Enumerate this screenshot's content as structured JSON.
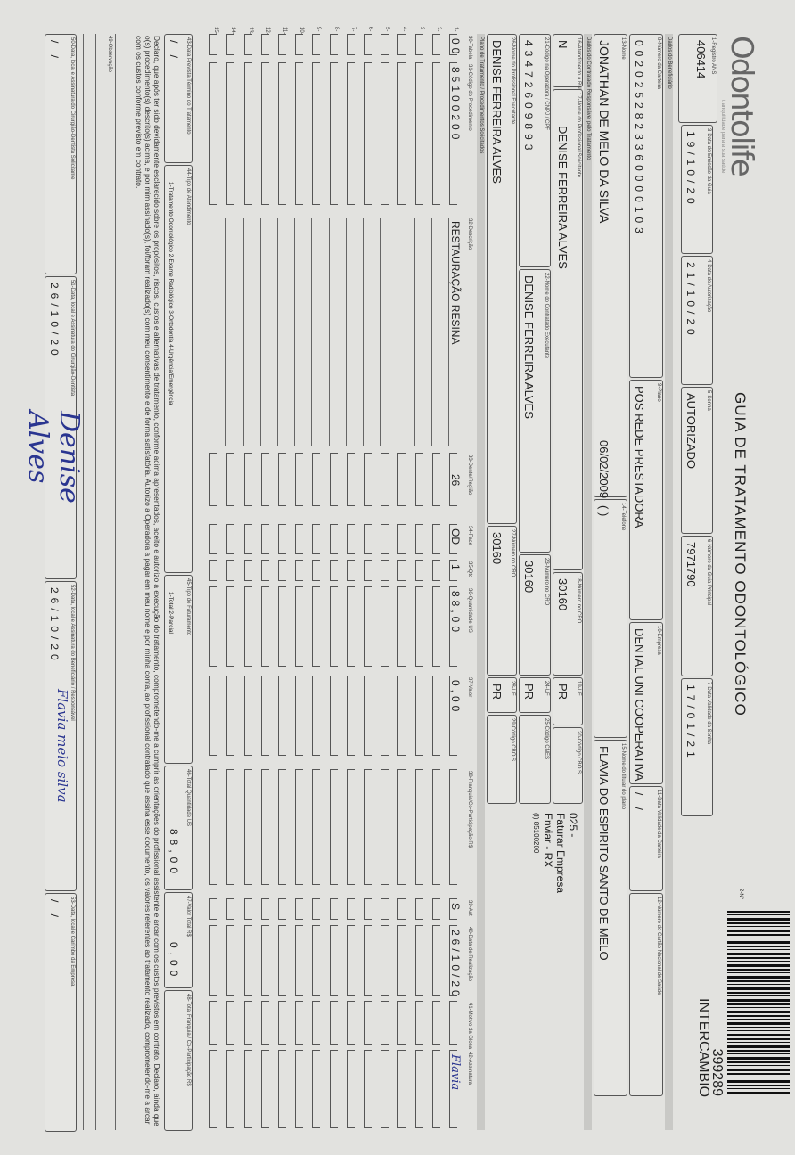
{
  "logo": {
    "brand": "Odontolife",
    "tagline": "tranquilidade para a sua saúde"
  },
  "title": "GUIA DE TRATAMENTO ODONTOLÓGICO",
  "guide_number": {
    "label": "2-Nº",
    "value": "399289",
    "type": "INTERCAMBIO"
  },
  "fields": {
    "f1": {
      "label": "1-Registro ANS",
      "value": "406414"
    },
    "f3": {
      "label": "3-Data de Emissão da Guia",
      "value": "19/10/20"
    },
    "f4": {
      "label": "4-Data de Autorização",
      "value": "21/10/20"
    },
    "f5": {
      "label": "5-Senha",
      "value": "AUTORIZADO"
    },
    "f6": {
      "label": "6-Número da Guia Principal",
      "value": "7971790"
    },
    "f7": {
      "label": "7-Data Validade da Senha",
      "value": "17/01/21"
    },
    "f8": {
      "label": "8-Número da Carteira",
      "value": "0020252823360000103"
    },
    "f9": {
      "label": "9-Plano",
      "value": "POS REDE PRESTADORA"
    },
    "f10": {
      "label": "10-Empresa",
      "value": "DENTAL UNI COOPERATIVA"
    },
    "f11": {
      "label": "11-Data Validade da Carteira",
      "value": "  /  /  "
    },
    "f12": {
      "label": "12-Número do Cartão Nacional de Saúde",
      "value": ""
    },
    "f13": {
      "label": "13-Nome",
      "value": "JONATHAN DE MELO DA SILVA",
      "birth": "06/02/2009"
    },
    "f14": {
      "label": "14-Telefone",
      "value": "(  )"
    },
    "f15": {
      "label": "15-Nome do titular do plano",
      "value": "FLAVIA DO ESPIRITO SANTO DE MELO"
    },
    "f16": {
      "label": "16-Atendimento a RN",
      "value": "N"
    },
    "f17": {
      "label": "17-Nome do Profissional Solicitante",
      "value": "DENISE FERREIRA ALVES"
    },
    "f18": {
      "label": "18-Número no CRO",
      "value": "30160"
    },
    "f19": {
      "label": "19-UF",
      "value": "PR"
    },
    "f20": {
      "label": "20-Código CBO S",
      "value": ""
    },
    "f21": {
      "label": "21-Código na Operadora / CNPJ / CPF",
      "value": "43472609893"
    },
    "f22": {
      "label": "22-Nome do Contratado Executante",
      "value": "DENISE FERREIRA ALVES"
    },
    "f23": {
      "label": "23-Número no CRO",
      "value": "30160"
    },
    "f24": {
      "label": "24-UF",
      "value": "PR"
    },
    "f25": {
      "label": "25-Código CNES",
      "value": ""
    },
    "f26": {
      "label": "26-Nome do Profissional Executante",
      "value": "DENISE FERREIRA ALVES"
    },
    "f27": {
      "label": "27-Número no CRO",
      "value": "30160"
    },
    "f28": {
      "label": "28-UF",
      "value": "PR"
    },
    "f29": {
      "label": "29-Código CBO S",
      "value": ""
    }
  },
  "notes": {
    "line1": "025 -",
    "line2": "Faturar Empresa",
    "line3": "Enviar - RX",
    "line4": "(I) 85100200"
  },
  "sections": {
    "beneficiary": "Dados do Beneficiário",
    "contractor": "Dados do Contratado Responsável pelo Tratamento",
    "plan": "Plano de Tratamento / Procedimentos Solicitados"
  },
  "procedures": {
    "headers": [
      "30-Tabela",
      "31-Código do Procedimento",
      "32-Descrição",
      "33-Dente/Região",
      "34-Face",
      "35-Qtd",
      "36-Quantidade US",
      "37-Valor",
      "38-Franquia/Co-Participação R$",
      "39-Aut",
      "40-Data de Realização",
      "41-Motivo da Glosa",
      "42-Assinatura"
    ],
    "row_numbers": [
      "1-",
      "2-",
      "3-",
      "4-",
      "5-",
      "6-",
      "7-",
      "8-",
      "9-",
      "10-",
      "11-",
      "12-",
      "13-",
      "14-",
      "15-"
    ],
    "rows": [
      {
        "tabela": "00",
        "codigo": "85100200",
        "descricao": "RESTAURAÇÃO RESINA",
        "dente": "26",
        "face": "OD",
        "qtd": "1",
        "qtd_us": "88,00",
        "valor": "0,00",
        "franquia": "",
        "aut": "S",
        "data": "26/10/20",
        "glosa": "",
        "assinatura": "Flavia"
      }
    ]
  },
  "footer": {
    "f43": {
      "label": "43-Data Prevista Término do Tratamento",
      "value": "  /  /  "
    },
    "f44": {
      "label": "44-Tipo de Atendimento",
      "value": "1-Tratamento Odontológico  2-Exame Radiológico  3-Ortodontia  4-Urgência/Emergência"
    },
    "f45": {
      "label": "45-Tipo de Faturamento",
      "value": "1-Total  2-Parcial"
    },
    "f46": {
      "label": "46-Total Quantidade US",
      "value": "88,00"
    },
    "f47": {
      "label": "47-Valor Total R$",
      "value": "0,00"
    },
    "f48": {
      "label": "48-Total Franquia / Co-Participação R$",
      "value": ""
    },
    "declaration": "Declaro, que após ter sido devidamente esclarecido sobre os propósitos, riscos, custos e alternativas de tratamento, conforme acima apresentados, aceito e autorizo a execução do tratamento, comprometendo-me a cumprir as orientações do profissional assistente e arcar com os custos previstos em contrato. Declaro, ainda que o(s) procedimento(s) descrito(s) acima, e por mim assinado(s), foi/foram realizado(s) com meu consentimento e de forma satisfatória. Autorizo a Operadora a pagar em meu nome e por minha conta, ao profissional contratado que assina esse documento, os valores referentes ao tratamento realizado, comprometendo-me a arcar com os custos conforme previsto em contrato.",
    "f49": {
      "label": "49-Observação",
      "value": ""
    },
    "f50": {
      "label": "50-Data, local e Assinatura do Cirurgião-Dentista Solicitante",
      "value": "  /  /  "
    },
    "f51": {
      "label": "51-Data, local e Assinatura do Cirurgião-Dentista",
      "value": "26/10/20",
      "signature": "Denise Alves"
    },
    "f52": {
      "label": "52-Data, local e Assinatura do Beneficiário / Responsável",
      "value": "26/10/20",
      "signature": "Flavia melo silva"
    },
    "f53": {
      "label": "53-Data, local e Carimbo da Empresa",
      "value": "  /  /  "
    }
  },
  "colors": {
    "ink": "#222222",
    "signature_ink": "#2a3590",
    "paper": "#e2e2df"
  }
}
